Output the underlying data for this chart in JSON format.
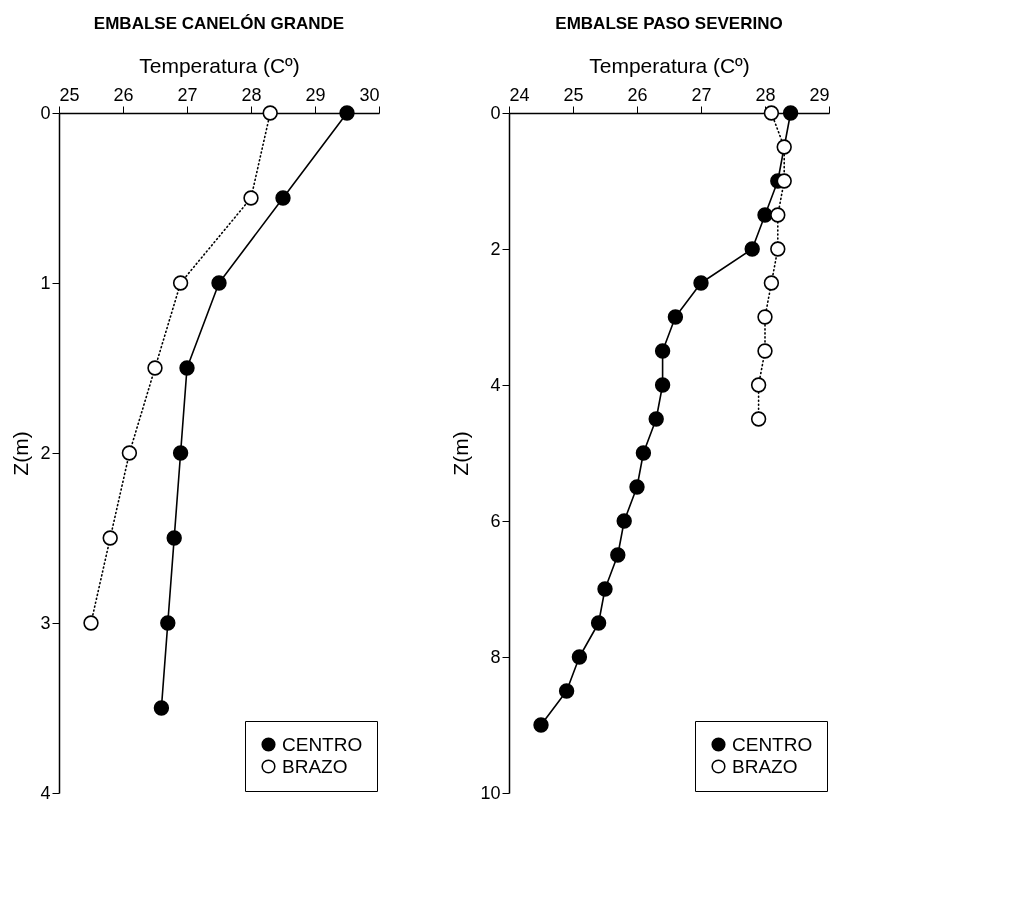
{
  "chart_data": [
    {
      "type": "line",
      "title": "EMBALSE CANELÓN GRANDE",
      "xlabel": "Temperatura (Cº)",
      "ylabel": "Z(m)",
      "xlim": [
        25,
        30
      ],
      "xticks": [
        25,
        26,
        27,
        28,
        29,
        30
      ],
      "ylim": [
        4,
        0
      ],
      "yticks": [
        0,
        1,
        2,
        3,
        4
      ],
      "grid": false,
      "legend": "bottom right",
      "marker": "circle",
      "series": [
        {
          "name": "CENTRO",
          "color": "#000000",
          "line_style": "solid",
          "x": [
            29.5,
            28.5,
            27.5,
            27.0,
            26.9,
            26.8,
            26.7,
            26.6
          ],
          "values": [
            0,
            0.5,
            1,
            1.5,
            2,
            2.5,
            3,
            3.5
          ]
        },
        {
          "name": "BRAZO",
          "color": "#000000",
          "line_style": "dotted",
          "x": [
            28.3,
            28.0,
            26.9,
            26.5,
            26.1,
            25.8,
            25.5
          ],
          "values": [
            0,
            0.5,
            1,
            1.5,
            2,
            2.5,
            3
          ]
        }
      ]
    },
    {
      "type": "line",
      "title": "EMBALSE PASO SEVERINO",
      "xlabel": "Temperatura (Cº)",
      "ylabel": "Z(m)",
      "xlim": [
        24,
        29
      ],
      "xticks": [
        24,
        25,
        26,
        27,
        28,
        29
      ],
      "ylim": [
        10,
        0
      ],
      "yticks": [
        0,
        2,
        4,
        6,
        8,
        10
      ],
      "grid": false,
      "legend": "right",
      "marker": "circle",
      "series": [
        {
          "name": "CENTRO",
          "color": "#000000",
          "line_style": "solid",
          "x": [
            28.4,
            28.2,
            28.0,
            27.8,
            27.0,
            26.6,
            26.4,
            26.4,
            26.3,
            26.1,
            26.0,
            25.8,
            25.7,
            25.5,
            25.4,
            25.1,
            24.9,
            24.5
          ],
          "values": [
            0,
            1,
            1.5,
            2,
            2.5,
            3,
            3.5,
            4,
            4.5,
            5,
            5.5,
            6,
            6.5,
            7,
            7.5,
            8,
            8.5,
            9
          ]
        },
        {
          "name": "BRAZO",
          "color": "#000000",
          "line_style": "dotted",
          "x": [
            28.1,
            28.3,
            28.3,
            28.2,
            28.2,
            28.1,
            28.0,
            28.0,
            27.9,
            27.9
          ],
          "values": [
            0,
            0.5,
            1,
            1.5,
            2,
            2.5,
            3,
            3.5,
            4,
            4.5
          ]
        }
      ]
    }
  ]
}
